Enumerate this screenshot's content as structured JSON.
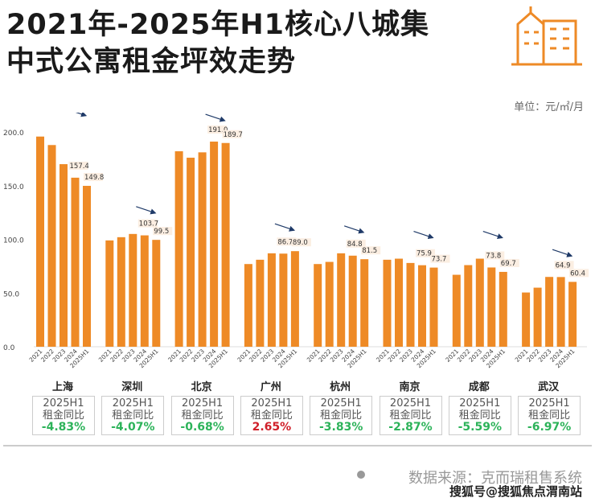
{
  "title_lines": [
    "2021年-2025年H1核心八城集",
    "中式公寓租金坪效走势"
  ],
  "unit": "单位：元/㎡/月",
  "colors": {
    "bar": "#EE8A26",
    "negative": "#2DB35A",
    "positive": "#D0202A",
    "arrow": "#1F3A68"
  },
  "chart_data": {
    "type": "bar",
    "title": "2021年-2025年H1核心八城集中式公寓租金坪效走势",
    "ylabel": "元/㎡/月",
    "ylim": [
      0,
      200
    ],
    "yticks": [
      "0.0",
      "50.0",
      "100.0",
      "150.0",
      "200.0"
    ],
    "periods": [
      "2021",
      "2022",
      "2023",
      "2024",
      "2025H1"
    ],
    "cities": [
      {
        "name": "上海",
        "values": [
          195.7,
          187.8,
          170,
          157.4,
          149.8
        ],
        "labels": [
          "",
          "",
          "",
          "157.4",
          "149.8"
        ]
      },
      {
        "name": "深圳",
        "values": [
          99,
          102,
          105,
          103.7,
          99.5
        ],
        "labels": [
          "",
          "",
          "",
          "103.7",
          "99.5"
        ]
      },
      {
        "name": "北京",
        "values": [
          182,
          176,
          181,
          191.0,
          189.7
        ],
        "labels": [
          "",
          "",
          "",
          "191.0",
          "189.7"
        ]
      },
      {
        "name": "广州",
        "values": [
          77,
          81,
          87,
          86.7,
          89.0
        ],
        "labels": [
          "",
          "",
          "",
          "86.7",
          "89.0"
        ]
      },
      {
        "name": "杭州",
        "values": [
          77,
          79,
          87,
          84.8,
          81.5
        ],
        "labels": [
          "",
          "",
          "",
          "84.8",
          "81.5"
        ]
      },
      {
        "name": "南京",
        "values": [
          81,
          82,
          78,
          75.9,
          73.7
        ],
        "labels": [
          "",
          "",
          "",
          "75.9",
          "73.7"
        ]
      },
      {
        "name": "成都",
        "values": [
          67,
          76,
          82,
          73.8,
          69.7
        ],
        "labels": [
          "",
          "",
          "",
          "73.8",
          "69.7"
        ]
      },
      {
        "name": "武汉",
        "values": [
          50.5,
          55,
          65,
          64.9,
          60.4
        ],
        "labels": [
          "",
          "",
          "",
          "64.9",
          "60.4"
        ]
      }
    ]
  },
  "yoy": [
    {
      "line1": "2025H1",
      "line2": "租金同比",
      "value": "-4.83%",
      "sign": "neg"
    },
    {
      "line1": "2025H1",
      "line2": "租金同比",
      "value": "-4.07%",
      "sign": "neg"
    },
    {
      "line1": "2025H1",
      "line2": "租金同比",
      "value": "-0.68%",
      "sign": "neg"
    },
    {
      "line1": "2025H1",
      "line2": "租金同比",
      "value": "2.65%",
      "sign": "pos"
    },
    {
      "line1": "2025H1",
      "line2": "租金同比",
      "value": "-3.83%",
      "sign": "neg"
    },
    {
      "line1": "2025H1",
      "line2": "租金同比",
      "value": "-2.87%",
      "sign": "neg"
    },
    {
      "line1": "2025H1",
      "line2": "租金同比",
      "value": "-5.59%",
      "sign": "neg"
    },
    {
      "line1": "2025H1",
      "line2": "租金同比",
      "value": "-6.97%",
      "sign": "neg"
    }
  ],
  "source": "数据来源：克而瑞租售系统",
  "watermark": "搜狐号@搜狐焦点渭南站"
}
